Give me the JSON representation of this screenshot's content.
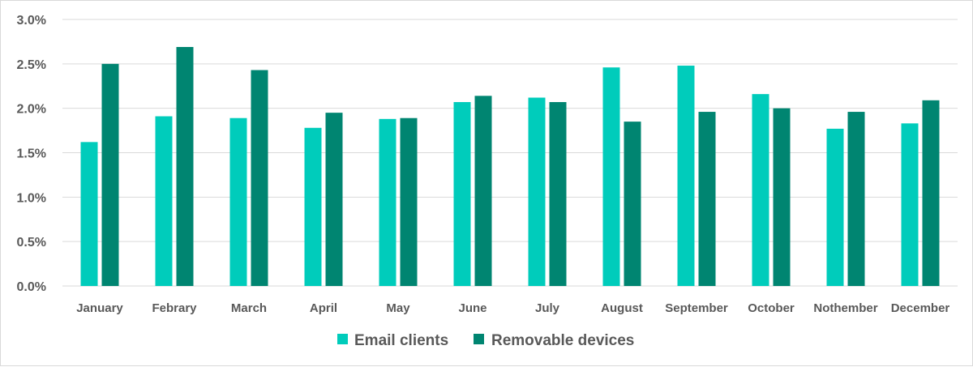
{
  "chart_data": {
    "type": "bar",
    "title": "",
    "xlabel": "",
    "ylabel": "",
    "ylim": [
      0,
      3.0
    ],
    "y_ticks": [
      "0.0%",
      "0.5%",
      "1.0%",
      "1.5%",
      "2.0%",
      "2.5%",
      "3.0%"
    ],
    "y_tick_values": [
      0,
      0.5,
      1.0,
      1.5,
      2.0,
      2.5,
      3.0
    ],
    "grid": true,
    "legend_position": "bottom",
    "categories": [
      "January",
      "Febrary",
      "March",
      "April",
      "May",
      "June",
      "July",
      "August",
      "September",
      "October",
      "Nothember",
      "December"
    ],
    "series": [
      {
        "name": "Email clients",
        "color": "#00CCBB",
        "values": [
          1.62,
          1.91,
          1.89,
          1.78,
          1.88,
          2.07,
          2.12,
          2.46,
          2.48,
          2.16,
          1.77,
          1.83
        ]
      },
      {
        "name": "Removable devices",
        "color": "#008571",
        "values": [
          2.5,
          2.69,
          2.43,
          1.95,
          1.89,
          2.14,
          2.07,
          1.85,
          1.96,
          2.0,
          1.96,
          2.09
        ]
      }
    ]
  }
}
